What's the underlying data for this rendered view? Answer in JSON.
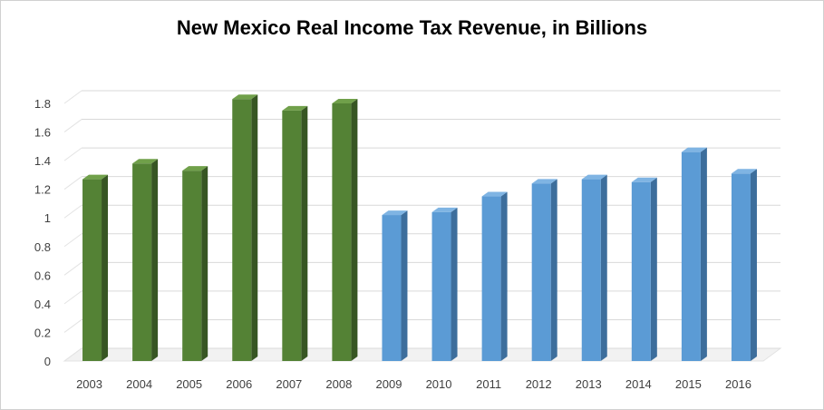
{
  "chart_data": {
    "type": "bar",
    "title": "New Mexico Real Income Tax Revenue, in Billions",
    "xlabel": "",
    "ylabel": "",
    "categories": [
      "2003",
      "2004",
      "2005",
      "2006",
      "2007",
      "2008",
      "2009",
      "2010",
      "2011",
      "2012",
      "2013",
      "2014",
      "2015",
      "2016"
    ],
    "values": [
      1.27,
      1.38,
      1.33,
      1.83,
      1.75,
      1.8,
      1.02,
      1.04,
      1.15,
      1.24,
      1.27,
      1.25,
      1.46,
      1.31
    ],
    "yticks": [
      "0",
      "0.2",
      "0.4",
      "0.6",
      "0.8",
      "1",
      "1.2",
      "1.4",
      "1.6",
      "1.8"
    ],
    "ylim": [
      0,
      1.8
    ],
    "grid": true,
    "legend": "none",
    "colors": {
      "group_a": {
        "front": "#548235",
        "side": "#375623",
        "top": "#70a04a"
      },
      "group_b": {
        "front": "#5b9bd5",
        "side": "#3d6e9c",
        "top": "#7fb4e3"
      },
      "gridline": "#d9d9d9",
      "grid_depth": "#e3e3e3"
    },
    "bar_colors": [
      "group_a",
      "group_a",
      "group_a",
      "group_a",
      "group_a",
      "group_a",
      "group_b",
      "group_b",
      "group_b",
      "group_b",
      "group_b",
      "group_b",
      "group_b",
      "group_b"
    ]
  }
}
